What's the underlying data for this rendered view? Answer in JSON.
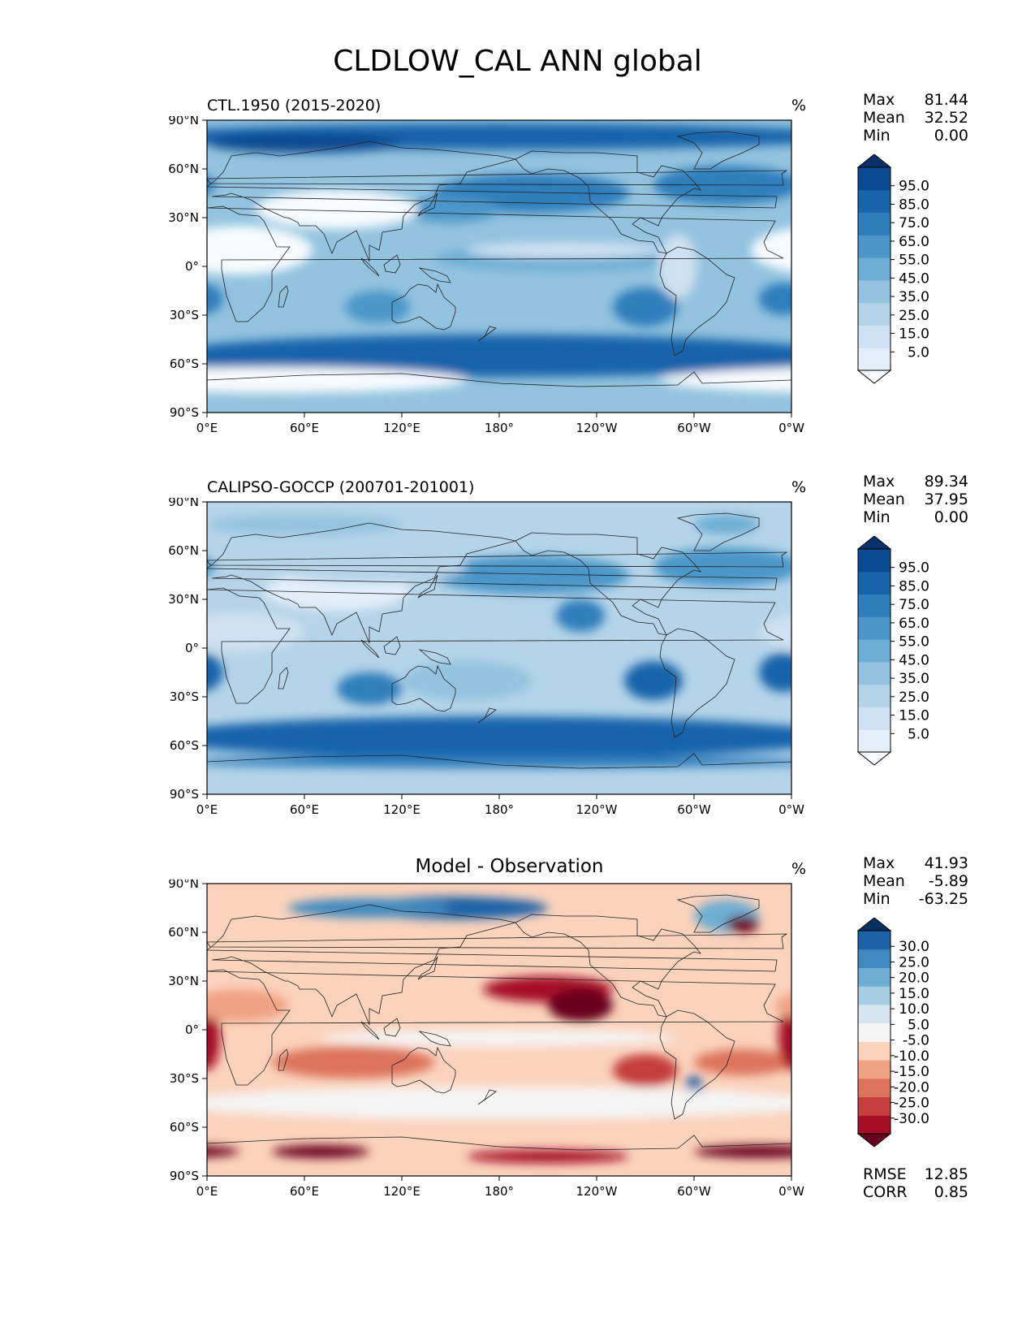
{
  "figure": {
    "title": "CLDLOW_CAL ANN global"
  },
  "axes": {
    "lat_ticks": [
      "90°N",
      "60°N",
      "30°N",
      "0°",
      "30°S",
      "60°S",
      "90°S"
    ],
    "lon_ticks": [
      "0°E",
      "60°E",
      "120°E",
      "180°",
      "120°W",
      "60°W",
      "0°W"
    ]
  },
  "chart_data": [
    {
      "type": "heatmap",
      "title": "CTL.1950 (2015-2020)",
      "units": "%",
      "xlim": [
        0,
        360
      ],
      "ylim": [
        -90,
        90
      ],
      "stats": [
        {
          "label": "Max",
          "value": "81.44"
        },
        {
          "label": "Mean",
          "value": "32.52"
        },
        {
          "label": "Min",
          "value": "0.00"
        }
      ],
      "colorbar": {
        "tick_labels": [
          "95.0",
          "85.0",
          "75.0",
          "65.0",
          "55.0",
          "45.0",
          "35.0",
          "25.0",
          "15.0",
          "5.0"
        ],
        "colors": [
          "#f7fbff",
          "#e3eef9",
          "#cfe1f2",
          "#b5d4e9",
          "#93c3df",
          "#6daed5",
          "#4b97c9",
          "#2f7ebc",
          "#1864aa",
          "#0a4a90",
          "#08306b"
        ]
      }
    },
    {
      "type": "heatmap",
      "title": "CALIPSO-GOCCP (200701-201001)",
      "units": "%",
      "xlim": [
        0,
        360
      ],
      "ylim": [
        -90,
        90
      ],
      "stats": [
        {
          "label": "Max",
          "value": "89.34"
        },
        {
          "label": "Mean",
          "value": "37.95"
        },
        {
          "label": "Min",
          "value": "0.00"
        }
      ],
      "colorbar": {
        "tick_labels": [
          "95.0",
          "85.0",
          "75.0",
          "65.0",
          "55.0",
          "45.0",
          "35.0",
          "25.0",
          "15.0",
          "5.0"
        ],
        "colors": [
          "#f7fbff",
          "#e3eef9",
          "#cfe1f2",
          "#b5d4e9",
          "#93c3df",
          "#6daed5",
          "#4b97c9",
          "#2f7ebc",
          "#1864aa",
          "#0a4a90",
          "#08306b"
        ]
      }
    },
    {
      "type": "heatmap",
      "title": "Model - Observation",
      "units": "%",
      "xlim": [
        0,
        360
      ],
      "ylim": [
        -90,
        90
      ],
      "stats": [
        {
          "label": "Max",
          "value": "41.93"
        },
        {
          "label": "Mean",
          "value": "-5.89"
        },
        {
          "label": "Min",
          "value": "-63.25"
        }
      ],
      "colorbar": {
        "tick_labels": [
          "30.0",
          "25.0",
          "20.0",
          "15.0",
          "10.0",
          "5.0",
          "-5.0",
          "-10.0",
          "-15.0",
          "-20.0",
          "-25.0",
          "-30.0"
        ],
        "colors": [
          "#67001f",
          "#a50f26",
          "#c53e3d",
          "#dd735c",
          "#f0a284",
          "#fbd2bc",
          "#f5f5f5",
          "#d6e6f0",
          "#a6cde2",
          "#6eaed2",
          "#3f8ac0",
          "#1c62a7",
          "#053061"
        ]
      },
      "metrics": [
        {
          "label": "RMSE",
          "value": "12.85"
        },
        {
          "label": "CORR",
          "value": "0.85"
        }
      ]
    }
  ]
}
